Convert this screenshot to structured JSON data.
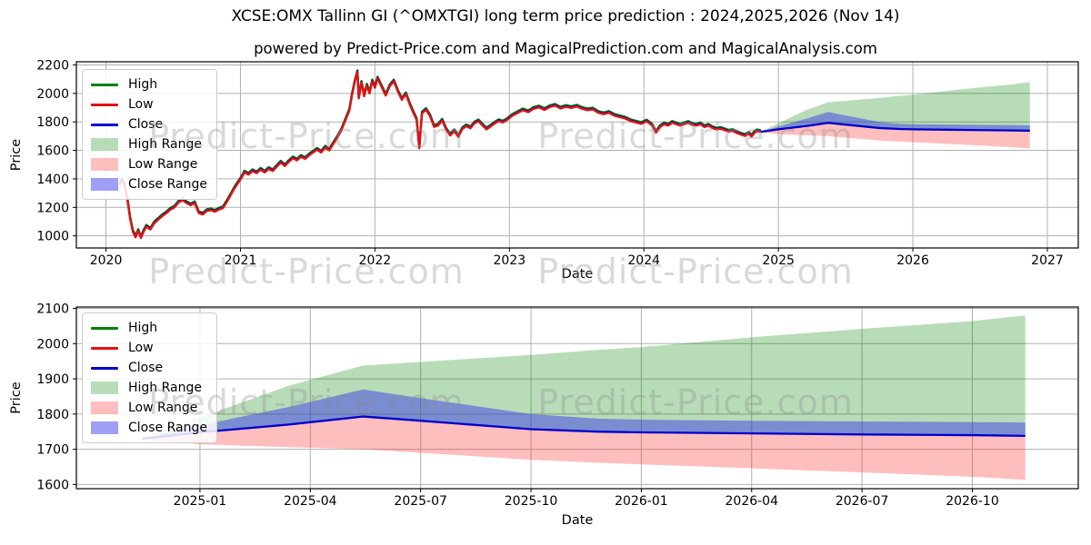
{
  "title": "XCSE:OMX Tallinn GI (^OMXTGI) long term price prediction : 2024,2025,2026 (Nov 14)",
  "subtitle": "powered by Predict-Price.com and MagicalPrediction.com and MagicalAnalysis.com",
  "watermark_text": "Predict-Price.com",
  "colors": {
    "high_line": "#008000",
    "low_line": "#e01212",
    "close_line": "#0000cc",
    "high_range_fill": "rgba(0,128,0,0.28)",
    "low_range_fill": "rgba(255,40,40,0.30)",
    "close_range_fill": "rgba(55,55,235,0.48)",
    "grid": "#b0b0b0",
    "spine": "#000000"
  },
  "legend_items": [
    {
      "label": "High",
      "kind": "line",
      "color": "#008000"
    },
    {
      "label": "Low",
      "kind": "line",
      "color": "#e01212"
    },
    {
      "label": "Close",
      "kind": "line",
      "color": "#0000cc"
    },
    {
      "label": "High Range",
      "kind": "patch",
      "color": "rgba(0,128,0,0.28)"
    },
    {
      "label": "Low Range",
      "kind": "patch",
      "color": "rgba(255,40,40,0.30)"
    },
    {
      "label": "Close Range",
      "kind": "patch",
      "color": "rgba(55,55,235,0.48)"
    }
  ],
  "forecast": {
    "x": [
      2024.87,
      2025.0,
      2025.2,
      2025.37,
      2025.5,
      2025.75,
      2025.9,
      2026.0,
      2026.25,
      2026.5,
      2026.75,
      2026.87
    ],
    "close": [
      1730,
      1748,
      1770,
      1793,
      1781,
      1757,
      1750,
      1748,
      1745,
      1742,
      1740,
      1738
    ],
    "close_upper": [
      1730,
      1768,
      1820,
      1870,
      1845,
      1800,
      1787,
      1784,
      1781,
      1779,
      1777,
      1776
    ],
    "high_upper": [
      1732,
      1790,
      1880,
      1938,
      1948,
      1968,
      1982,
      1990,
      2018,
      2042,
      2064,
      2080
    ],
    "low_lower": [
      1728,
      1714,
      1706,
      1700,
      1690,
      1670,
      1662,
      1657,
      1646,
      1634,
      1622,
      1613
    ]
  },
  "chart_data": [
    {
      "type": "line",
      "name": "history-and-prediction",
      "xlabel": "Date",
      "ylabel": "Price",
      "grid": true,
      "legend_position": "upper left",
      "xlim": [
        2019.78,
        2027.23
      ],
      "ylim": [
        915,
        2222
      ],
      "xticks": [
        {
          "v": 2020,
          "label": "2020"
        },
        {
          "v": 2021,
          "label": "2021"
        },
        {
          "v": 2022,
          "label": "2022"
        },
        {
          "v": 2023,
          "label": "2023"
        },
        {
          "v": 2024,
          "label": "2024"
        },
        {
          "v": 2025,
          "label": "2025"
        },
        {
          "v": 2026,
          "label": "2026"
        },
        {
          "v": 2027,
          "label": "2027"
        }
      ],
      "yticks": [
        {
          "v": 1000,
          "label": "1000"
        },
        {
          "v": 1200,
          "label": "1200"
        },
        {
          "v": 1400,
          "label": "1400"
        },
        {
          "v": 1600,
          "label": "1600"
        },
        {
          "v": 1800,
          "label": "1800"
        },
        {
          "v": 2000,
          "label": "2000"
        },
        {
          "v": 2200,
          "label": "2200"
        }
      ],
      "has_history": true,
      "has_forecast": true,
      "history": {
        "series_names": [
          "High",
          "Low",
          "Close"
        ],
        "high_offset": 12,
        "close_offset": 5,
        "points": [
          [
            2020.1,
            1355
          ],
          [
            2020.12,
            1390
          ],
          [
            2020.14,
            1350
          ],
          [
            2020.16,
            1250
          ],
          [
            2020.18,
            1120
          ],
          [
            2020.2,
            1030
          ],
          [
            2020.22,
            990
          ],
          [
            2020.24,
            1035
          ],
          [
            2020.26,
            985
          ],
          [
            2020.28,
            1030
          ],
          [
            2020.3,
            1065
          ],
          [
            2020.33,
            1045
          ],
          [
            2020.36,
            1090
          ],
          [
            2020.39,
            1115
          ],
          [
            2020.42,
            1140
          ],
          [
            2020.45,
            1160
          ],
          [
            2020.48,
            1185
          ],
          [
            2020.51,
            1200
          ],
          [
            2020.54,
            1235
          ],
          [
            2020.57,
            1250
          ],
          [
            2020.6,
            1230
          ],
          [
            2020.63,
            1215
          ],
          [
            2020.66,
            1230
          ],
          [
            2020.69,
            1160
          ],
          [
            2020.72,
            1150
          ],
          [
            2020.75,
            1175
          ],
          [
            2020.78,
            1180
          ],
          [
            2020.81,
            1170
          ],
          [
            2020.84,
            1185
          ],
          [
            2020.87,
            1195
          ],
          [
            2020.9,
            1240
          ],
          [
            2020.93,
            1290
          ],
          [
            2020.96,
            1340
          ],
          [
            2021.0,
            1395
          ],
          [
            2021.03,
            1445
          ],
          [
            2021.06,
            1430
          ],
          [
            2021.09,
            1455
          ],
          [
            2021.12,
            1440
          ],
          [
            2021.15,
            1465
          ],
          [
            2021.18,
            1445
          ],
          [
            2021.21,
            1470
          ],
          [
            2021.24,
            1455
          ],
          [
            2021.27,
            1485
          ],
          [
            2021.3,
            1515
          ],
          [
            2021.33,
            1490
          ],
          [
            2021.36,
            1520
          ],
          [
            2021.39,
            1545
          ],
          [
            2021.42,
            1530
          ],
          [
            2021.45,
            1555
          ],
          [
            2021.48,
            1540
          ],
          [
            2021.51,
            1565
          ],
          [
            2021.54,
            1585
          ],
          [
            2021.57,
            1605
          ],
          [
            2021.6,
            1585
          ],
          [
            2021.63,
            1620
          ],
          [
            2021.66,
            1600
          ],
          [
            2021.69,
            1645
          ],
          [
            2021.72,
            1690
          ],
          [
            2021.75,
            1740
          ],
          [
            2021.78,
            1810
          ],
          [
            2021.81,
            1880
          ],
          [
            2021.83,
            1990
          ],
          [
            2021.85,
            2080
          ],
          [
            2021.87,
            2150
          ],
          [
            2021.88,
            1965
          ],
          [
            2021.9,
            2075
          ],
          [
            2021.92,
            1980
          ],
          [
            2021.94,
            2055
          ],
          [
            2021.96,
            2000
          ],
          [
            2021.98,
            2085
          ],
          [
            2022.0,
            2040
          ],
          [
            2022.02,
            2105
          ],
          [
            2022.05,
            2045
          ],
          [
            2022.08,
            1985
          ],
          [
            2022.11,
            2050
          ],
          [
            2022.14,
            2085
          ],
          [
            2022.17,
            2015
          ],
          [
            2022.2,
            1955
          ],
          [
            2022.23,
            1995
          ],
          [
            2022.26,
            1920
          ],
          [
            2022.29,
            1855
          ],
          [
            2022.31,
            1815
          ],
          [
            2022.33,
            1615
          ],
          [
            2022.35,
            1860
          ],
          [
            2022.38,
            1885
          ],
          [
            2022.41,
            1840
          ],
          [
            2022.44,
            1765
          ],
          [
            2022.47,
            1775
          ],
          [
            2022.5,
            1810
          ],
          [
            2022.53,
            1745
          ],
          [
            2022.56,
            1705
          ],
          [
            2022.59,
            1735
          ],
          [
            2022.62,
            1695
          ],
          [
            2022.65,
            1750
          ],
          [
            2022.68,
            1770
          ],
          [
            2022.71,
            1755
          ],
          [
            2022.74,
            1790
          ],
          [
            2022.77,
            1805
          ],
          [
            2022.8,
            1775
          ],
          [
            2022.83,
            1748
          ],
          [
            2022.86,
            1768
          ],
          [
            2022.89,
            1788
          ],
          [
            2022.92,
            1806
          ],
          [
            2022.95,
            1796
          ],
          [
            2022.98,
            1812
          ],
          [
            2023.02,
            1842
          ],
          [
            2023.06,
            1862
          ],
          [
            2023.1,
            1882
          ],
          [
            2023.14,
            1868
          ],
          [
            2023.18,
            1892
          ],
          [
            2023.22,
            1902
          ],
          [
            2023.26,
            1884
          ],
          [
            2023.3,
            1904
          ],
          [
            2023.34,
            1914
          ],
          [
            2023.38,
            1894
          ],
          [
            2023.42,
            1906
          ],
          [
            2023.46,
            1898
          ],
          [
            2023.5,
            1908
          ],
          [
            2023.54,
            1892
          ],
          [
            2023.58,
            1882
          ],
          [
            2023.62,
            1888
          ],
          [
            2023.66,
            1864
          ],
          [
            2023.7,
            1854
          ],
          [
            2023.74,
            1864
          ],
          [
            2023.78,
            1844
          ],
          [
            2023.82,
            1834
          ],
          [
            2023.86,
            1824
          ],
          [
            2023.9,
            1806
          ],
          [
            2023.94,
            1796
          ],
          [
            2023.98,
            1786
          ],
          [
            2024.02,
            1804
          ],
          [
            2024.06,
            1776
          ],
          [
            2024.09,
            1724
          ],
          [
            2024.12,
            1764
          ],
          [
            2024.15,
            1784
          ],
          [
            2024.18,
            1774
          ],
          [
            2024.21,
            1794
          ],
          [
            2024.24,
            1784
          ],
          [
            2024.27,
            1774
          ],
          [
            2024.3,
            1784
          ],
          [
            2024.33,
            1794
          ],
          [
            2024.36,
            1779
          ],
          [
            2024.39,
            1774
          ],
          [
            2024.42,
            1784
          ],
          [
            2024.45,
            1764
          ],
          [
            2024.48,
            1774
          ],
          [
            2024.51,
            1757
          ],
          [
            2024.54,
            1747
          ],
          [
            2024.57,
            1752
          ],
          [
            2024.6,
            1742
          ],
          [
            2024.63,
            1732
          ],
          [
            2024.66,
            1737
          ],
          [
            2024.69,
            1722
          ],
          [
            2024.72,
            1712
          ],
          [
            2024.75,
            1702
          ],
          [
            2024.78,
            1717
          ],
          [
            2024.8,
            1697
          ],
          [
            2024.82,
            1721
          ],
          [
            2024.84,
            1735
          ],
          [
            2024.87,
            1730
          ]
        ]
      }
    },
    {
      "type": "line",
      "name": "forecast-zoom",
      "xlabel": "Date",
      "ylabel": "Price",
      "grid": true,
      "legend_position": "upper left",
      "xlim": [
        2024.72,
        2026.99
      ],
      "ylim": [
        1588,
        2104
      ],
      "xticks": [
        {
          "v": 2025.0,
          "label": "2025-01"
        },
        {
          "v": 2025.25,
          "label": "2025-04"
        },
        {
          "v": 2025.5,
          "label": "2025-07"
        },
        {
          "v": 2025.75,
          "label": "2025-10"
        },
        {
          "v": 2026.0,
          "label": "2026-01"
        },
        {
          "v": 2026.25,
          "label": "2026-04"
        },
        {
          "v": 2026.5,
          "label": "2026-07"
        },
        {
          "v": 2026.75,
          "label": "2026-10"
        }
      ],
      "yticks": [
        {
          "v": 1600,
          "label": "1600"
        },
        {
          "v": 1700,
          "label": "1700"
        },
        {
          "v": 1800,
          "label": "1800"
        },
        {
          "v": 1900,
          "label": "1900"
        },
        {
          "v": 2000,
          "label": "2000"
        },
        {
          "v": 2100,
          "label": "2100"
        }
      ],
      "has_history": false,
      "has_forecast": true
    }
  ]
}
